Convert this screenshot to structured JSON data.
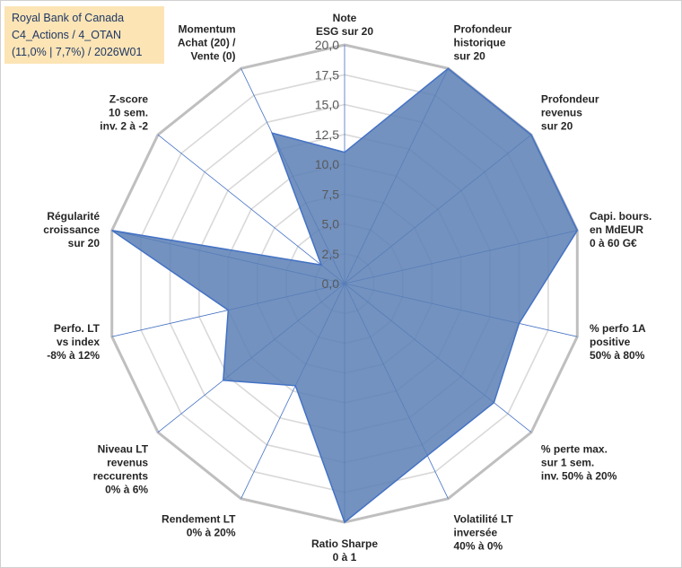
{
  "chart_data": {
    "type": "radar",
    "title_lines": [
      "Royal Bank of Canada",
      "C4_Actions / 4_OTAN",
      "(11,0% | 7,7%) / 2026W01"
    ],
    "categories": [
      [
        "Note",
        "ESG sur 20"
      ],
      [
        "Profondeur",
        "historique",
        "sur 20"
      ],
      [
        "Profondeur",
        "revenus",
        "sur 20"
      ],
      [
        "Capi. bours.",
        "en MdEUR",
        "0 à 60 G€"
      ],
      [
        "% perfo 1A",
        "positive",
        "50% à 80%"
      ],
      [
        "% perte max.",
        "sur 1 sem.",
        "inv. 50% à 20%"
      ],
      [
        "Volatilité LT",
        "inversée",
        "40% à 0%"
      ],
      [
        "Ratio Sharpe",
        "0 à 1"
      ],
      [
        "Rendement LT",
        "0% à 20%"
      ],
      [
        "Niveau LT",
        "revenus",
        "reccurents",
        "0% à 6%"
      ],
      [
        "Perfo. LT",
        "vs index",
        "-8% à 12%"
      ],
      [
        "Régularité",
        "croissance",
        "sur 20"
      ],
      [
        "Z-score",
        "10 sem.",
        "inv. 2 à -2"
      ],
      [
        "Momentum",
        "Achat (20) /",
        "Vente (0)"
      ]
    ],
    "values": [
      11.0,
      20.0,
      20.0,
      20.0,
      15.0,
      16.0,
      16.0,
      20.0,
      9.5,
      13.0,
      10.0,
      20.0,
      2.5,
      14.0
    ],
    "rmin": 0,
    "rmax": 20,
    "tick_labels": [
      "0,0",
      "2,5",
      "5,0",
      "7,5",
      "10,0",
      "12,5",
      "15,0",
      "17,5",
      "20,0"
    ],
    "colors": {
      "fill": "#5b7fb5",
      "line": "#4472c4",
      "grid": "#d9d9d9",
      "outer": "#bfbfbf",
      "spoke": "#4472c4"
    }
  }
}
